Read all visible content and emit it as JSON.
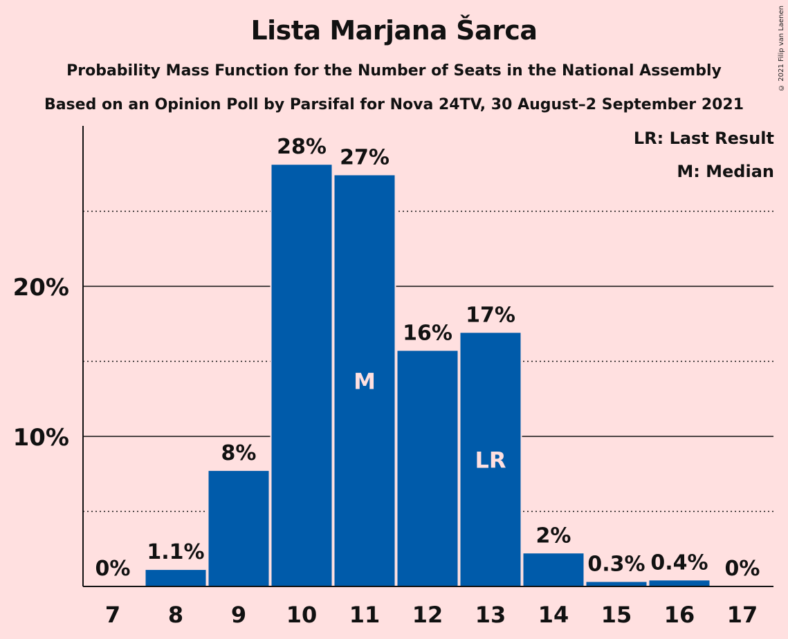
{
  "title": "Lista Marjana Šarca",
  "subtitle1": "Probability Mass Function for the Number of Seats in the National Assembly",
  "subtitle2": "Based on an Opinion Poll by Parsifal for Nova 24TV, 30 August–2 September 2021",
  "copyright": "© 2021 Filip van Laenen",
  "legend": {
    "last_result": "LR: Last Result",
    "median": "M: Median"
  },
  "colors": {
    "background": "#ffe0e0",
    "bar": "#005baa",
    "bar_text": "#ffe0e0",
    "text": "#111111"
  },
  "chart_data": {
    "type": "bar",
    "categories": [
      "7",
      "8",
      "9",
      "10",
      "11",
      "12",
      "13",
      "14",
      "15",
      "16",
      "17"
    ],
    "values": [
      0,
      1.1,
      7.7,
      28.1,
      27.4,
      15.7,
      16.9,
      2.2,
      0.3,
      0.4,
      0
    ],
    "labels": [
      "0%",
      "1.1%",
      "8%",
      "28%",
      "27%",
      "16%",
      "17%",
      "2%",
      "0.3%",
      "0.4%",
      "0%"
    ],
    "bar_markers": {
      "11": "M",
      "13": "LR"
    },
    "ylim": [
      0,
      30
    ],
    "yticks": [
      {
        "value": 10,
        "label": "10%"
      },
      {
        "value": 20,
        "label": "20%"
      }
    ],
    "minor_gridlines": [
      5,
      15,
      25
    ],
    "major_gridlines": [
      10,
      20
    ],
    "xlabel": "",
    "ylabel": "",
    "legend_position": "top-right"
  }
}
